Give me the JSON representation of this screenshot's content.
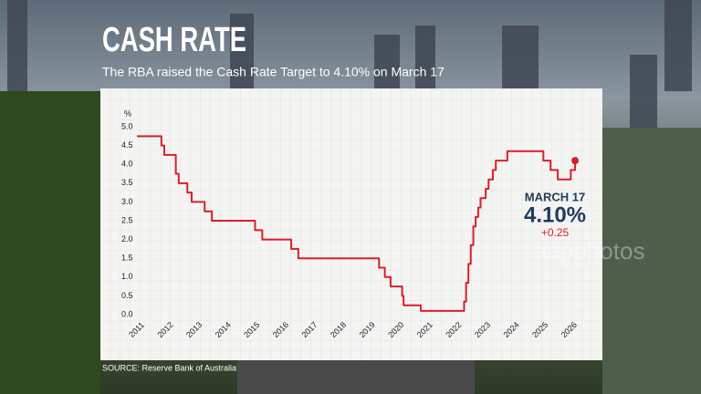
{
  "chart_data": {
    "type": "line",
    "title": "CASH RATE",
    "subtitle": "The RBA raised the Cash Rate Target to 4.10% on March 17",
    "y_label": "%",
    "source": "SOURCE: Reserve Bank of Australia",
    "watermark": "aapphotos",
    "annotation": {
      "date": "MARCH 17",
      "value": "4.10%",
      "change": "+0.25"
    },
    "color": "#d8202a",
    "xlim": [
      2010.7,
      2026.8
    ],
    "ylim": [
      0,
      5.2
    ],
    "xticks": [
      2011,
      2012,
      2013,
      2014,
      2015,
      2016,
      2017,
      2018,
      2019,
      2020,
      2021,
      2022,
      2023,
      2024,
      2025,
      2026
    ],
    "yticks": [
      {
        "value": 0,
        "label": "0.0"
      },
      {
        "value": 0.5,
        "label": "0.5"
      },
      {
        "value": 1,
        "label": "1.0"
      },
      {
        "value": 1.5,
        "label": "1.5"
      },
      {
        "value": 2,
        "label": "2.0"
      },
      {
        "value": 2.5,
        "label": "2.5"
      },
      {
        "value": 3,
        "label": "3.0"
      },
      {
        "value": 3.5,
        "label": "3.5"
      },
      {
        "value": 4,
        "label": "4.0"
      },
      {
        "value": 4.5,
        "label": "4.5"
      },
      {
        "value": 5,
        "label": "5.0"
      }
    ],
    "x": [
      2011,
      2011.85,
      2011.85,
      2011.95,
      2011.95,
      2012.35,
      2012.35,
      2012.45,
      2012.45,
      2012.75,
      2012.75,
      2012.9,
      2012.9,
      2013.35,
      2013.35,
      2013.6,
      2013.6,
      2015.1,
      2015.1,
      2015.35,
      2015.35,
      2016.35,
      2016.35,
      2016.6,
      2016.6,
      2019.4,
      2019.4,
      2019.6,
      2019.6,
      2019.8,
      2019.8,
      2020.2,
      2020.2,
      2020.25,
      2020.25,
      2020.85,
      2020.85,
      2022.35,
      2022.35,
      2022.42,
      2022.42,
      2022.5,
      2022.5,
      2022.58,
      2022.58,
      2022.67,
      2022.67,
      2022.75,
      2022.75,
      2022.84,
      2022.84,
      2022.92,
      2022.92,
      2023.1,
      2023.1,
      2023.2,
      2023.2,
      2023.35,
      2023.35,
      2023.45,
      2023.45,
      2023.85,
      2023.85,
      2025.1,
      2025.1,
      2025.35,
      2025.35,
      2025.6,
      2025.6,
      2026.05,
      2026.05,
      2026.2,
      2026.2
    ],
    "values": [
      4.75,
      4.75,
      4.5,
      4.5,
      4.25,
      4.25,
      3.75,
      3.75,
      3.5,
      3.5,
      3.25,
      3.25,
      3.0,
      3.0,
      2.75,
      2.75,
      2.5,
      2.5,
      2.25,
      2.25,
      2.0,
      2.0,
      1.75,
      1.75,
      1.5,
      1.5,
      1.25,
      1.25,
      1.0,
      1.0,
      0.75,
      0.75,
      0.5,
      0.5,
      0.25,
      0.25,
      0.1,
      0.1,
      0.35,
      0.35,
      0.85,
      0.85,
      1.35,
      1.35,
      1.85,
      1.85,
      2.35,
      2.35,
      2.6,
      2.6,
      2.85,
      2.85,
      3.1,
      3.1,
      3.35,
      3.35,
      3.6,
      3.6,
      3.85,
      3.85,
      4.1,
      4.1,
      4.35,
      4.35,
      4.1,
      4.1,
      3.85,
      3.85,
      3.6,
      3.6,
      3.85,
      3.85,
      4.1
    ]
  }
}
